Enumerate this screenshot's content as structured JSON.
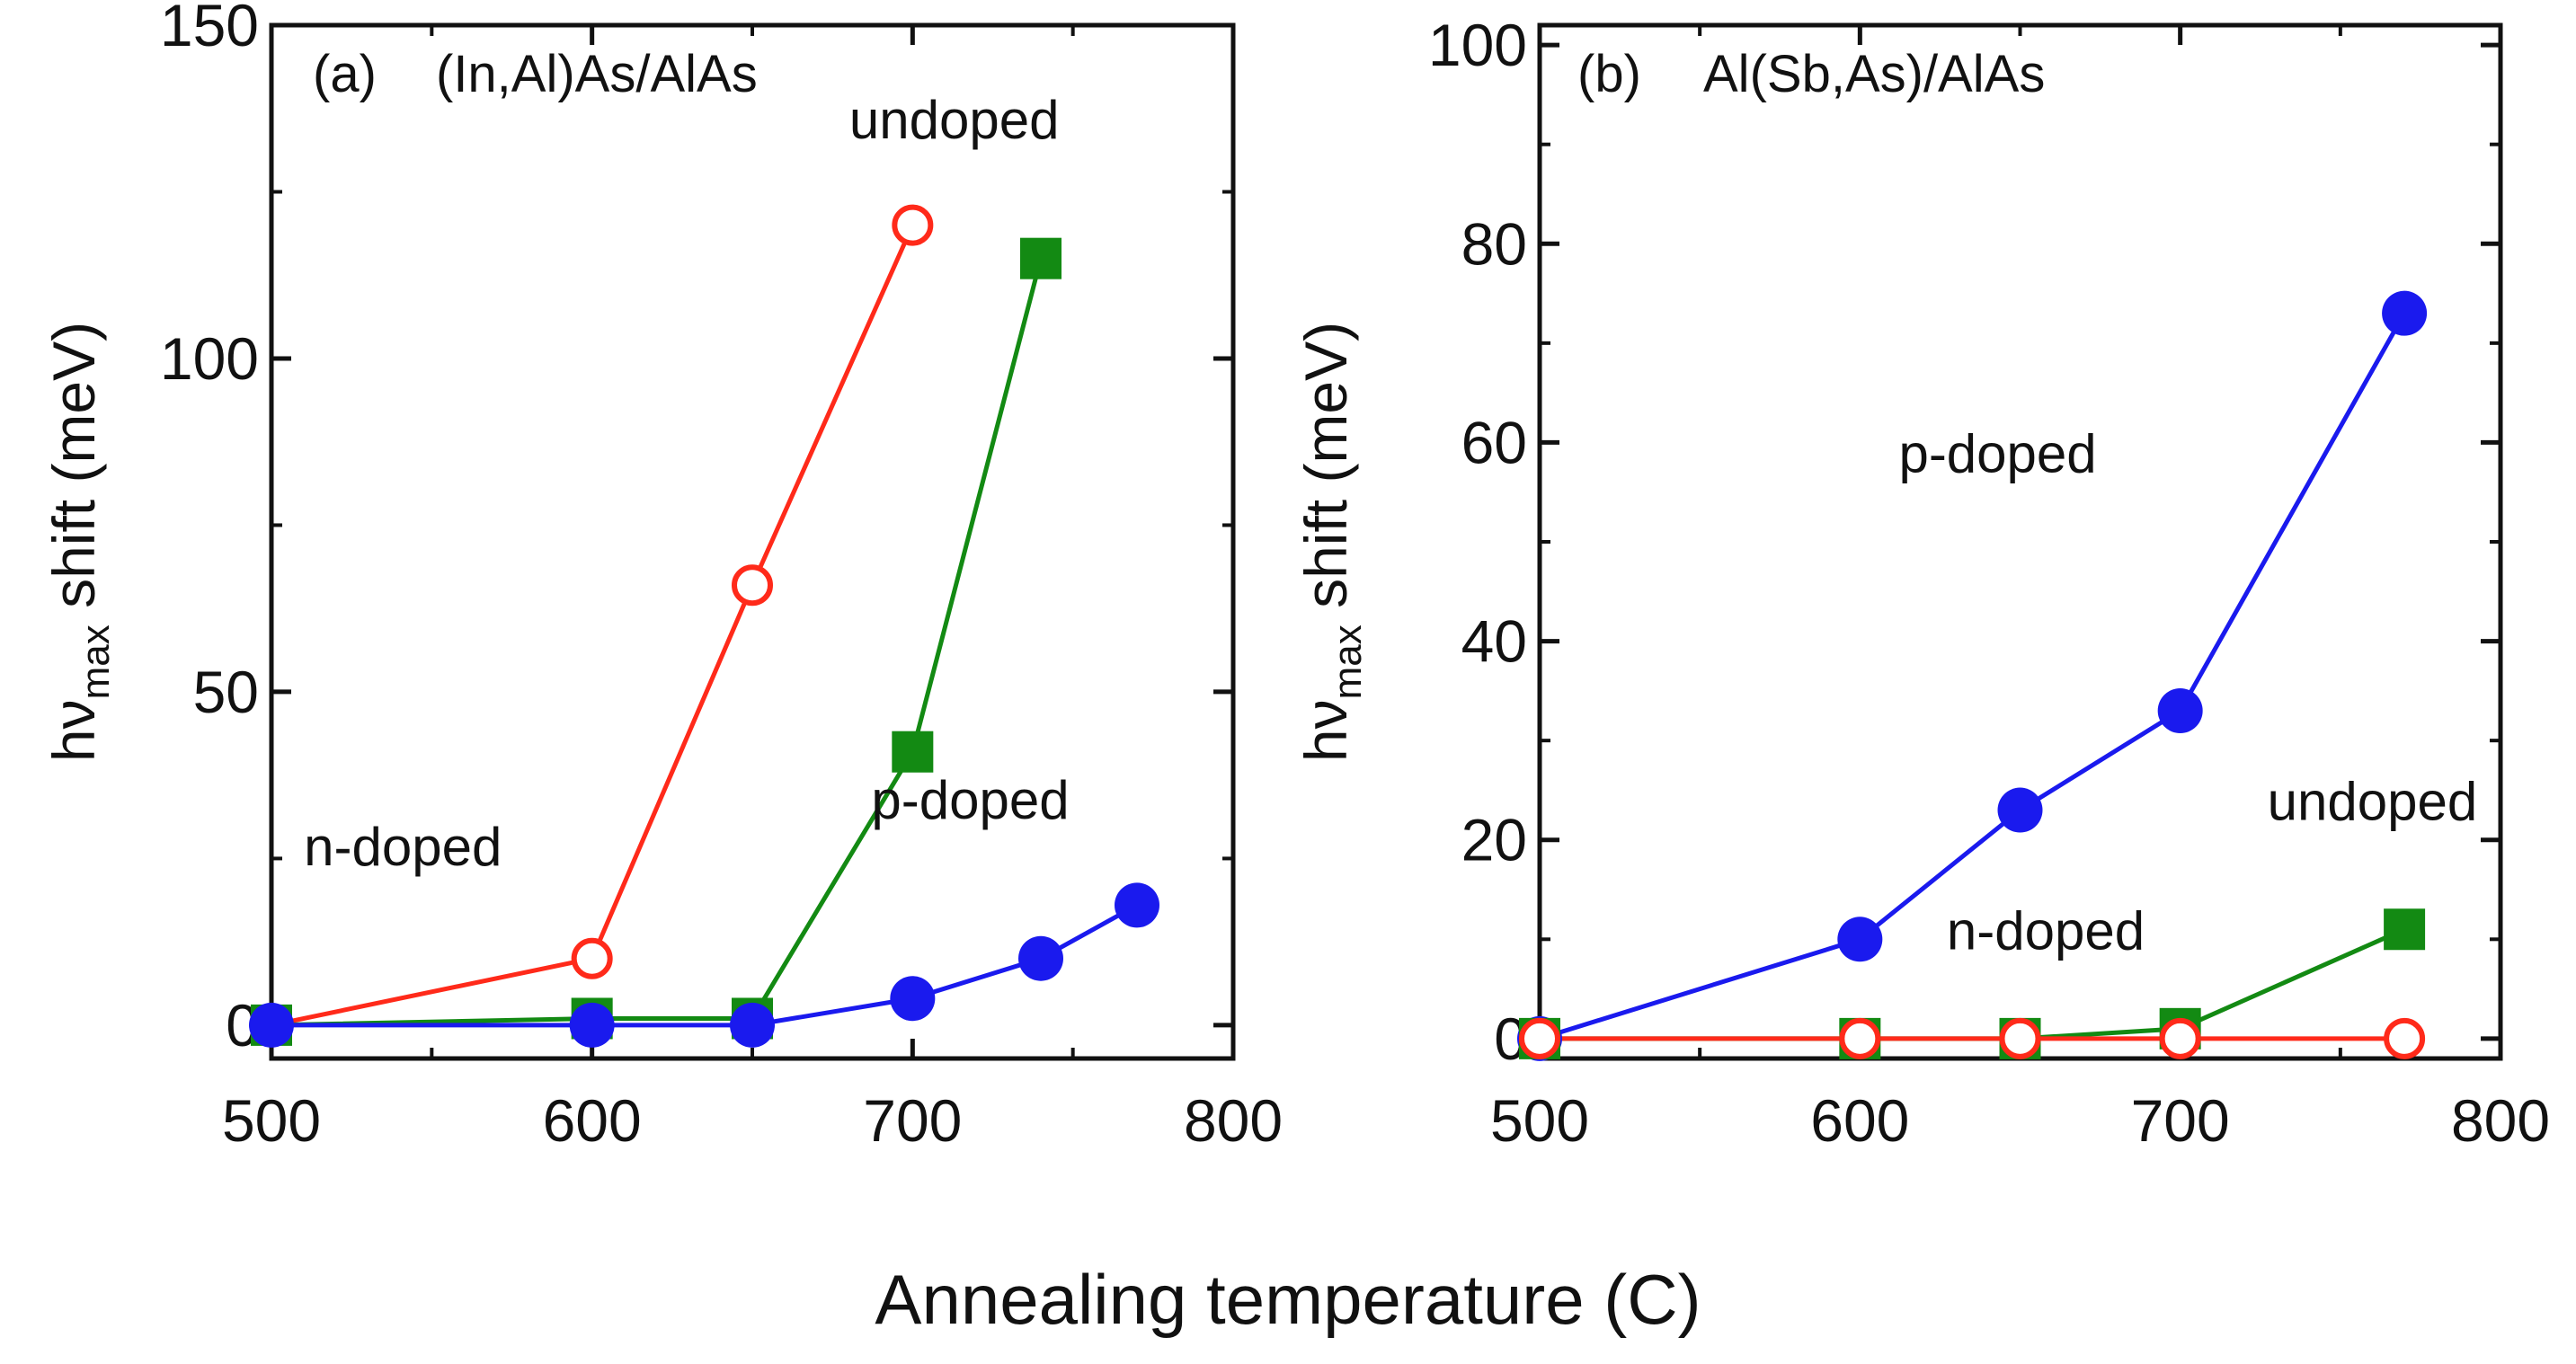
{
  "figure": {
    "xlabel": "Annealing temperature (C)"
  },
  "chart_data": [
    {
      "type": "line",
      "panel_label": "(a)",
      "title": "(In,Al)As/AlAs",
      "ylabel_main": "hν",
      "ylabel_sub": "max",
      "ylabel_rest": " shift  (meV)",
      "xlim": [
        500,
        800
      ],
      "ylim": [
        -5,
        150
      ],
      "xticks": [
        500,
        600,
        700,
        800
      ],
      "yticks": [
        0,
        50,
        100,
        150
      ],
      "xminor": [
        550,
        650,
        750
      ],
      "yminor": [
        25,
        75,
        125
      ],
      "series": [
        {
          "name": "n-doped",
          "color": "#ff2a1a",
          "marker": "circle",
          "filled": false,
          "x": [
            500,
            600,
            650,
            700
          ],
          "y": [
            0,
            10,
            66,
            120
          ]
        },
        {
          "name": "undoped",
          "color": "#138a13",
          "marker": "square",
          "filled": true,
          "x": [
            500,
            600,
            650,
            700,
            740
          ],
          "y": [
            0,
            1,
            1,
            41,
            115
          ]
        },
        {
          "name": "p-doped",
          "color": "#1a1aee",
          "marker": "circle",
          "filled": true,
          "x": [
            500,
            600,
            650,
            700,
            740,
            770
          ],
          "y": [
            0,
            0,
            0,
            4,
            10,
            18
          ]
        }
      ],
      "annotations": [
        {
          "text": "undoped",
          "x": 713,
          "y": 133
        },
        {
          "text": "p-doped",
          "x": 718,
          "y": 31
        },
        {
          "text": "n-doped",
          "x": 541,
          "y": 24
        }
      ]
    },
    {
      "type": "line",
      "panel_label": "(b)",
      "title": "Al(Sb,As)/AlAs",
      "ylabel_main": "hν",
      "ylabel_sub": "max",
      "ylabel_rest": " shift  (meV)",
      "xlim": [
        500,
        800
      ],
      "ylim": [
        -2,
        102
      ],
      "xticks": [
        500,
        600,
        700,
        800
      ],
      "yticks": [
        0,
        20,
        40,
        60,
        80,
        100
      ],
      "xminor": [
        550,
        650,
        750
      ],
      "yminor": [
        10,
        30,
        50,
        70,
        90
      ],
      "series": [
        {
          "name": "p-doped",
          "color": "#1a1aee",
          "marker": "circle",
          "filled": true,
          "x": [
            500,
            600,
            650,
            700,
            770
          ],
          "y": [
            0,
            10,
            23,
            33,
            73
          ]
        },
        {
          "name": "undoped",
          "color": "#138a13",
          "marker": "square",
          "filled": true,
          "x": [
            500,
            600,
            650,
            700,
            770
          ],
          "y": [
            0,
            0,
            0,
            1,
            11
          ]
        },
        {
          "name": "n-doped",
          "color": "#ff2a1a",
          "marker": "circle",
          "filled": false,
          "x": [
            500,
            600,
            650,
            700,
            770
          ],
          "y": [
            0,
            0,
            0,
            0,
            0
          ]
        }
      ],
      "annotations": [
        {
          "text": "p-doped",
          "x": 643,
          "y": 57
        },
        {
          "text": "undoped",
          "x": 760,
          "y": 22
        },
        {
          "text": "n-doped",
          "x": 658,
          "y": 9
        }
      ]
    }
  ]
}
